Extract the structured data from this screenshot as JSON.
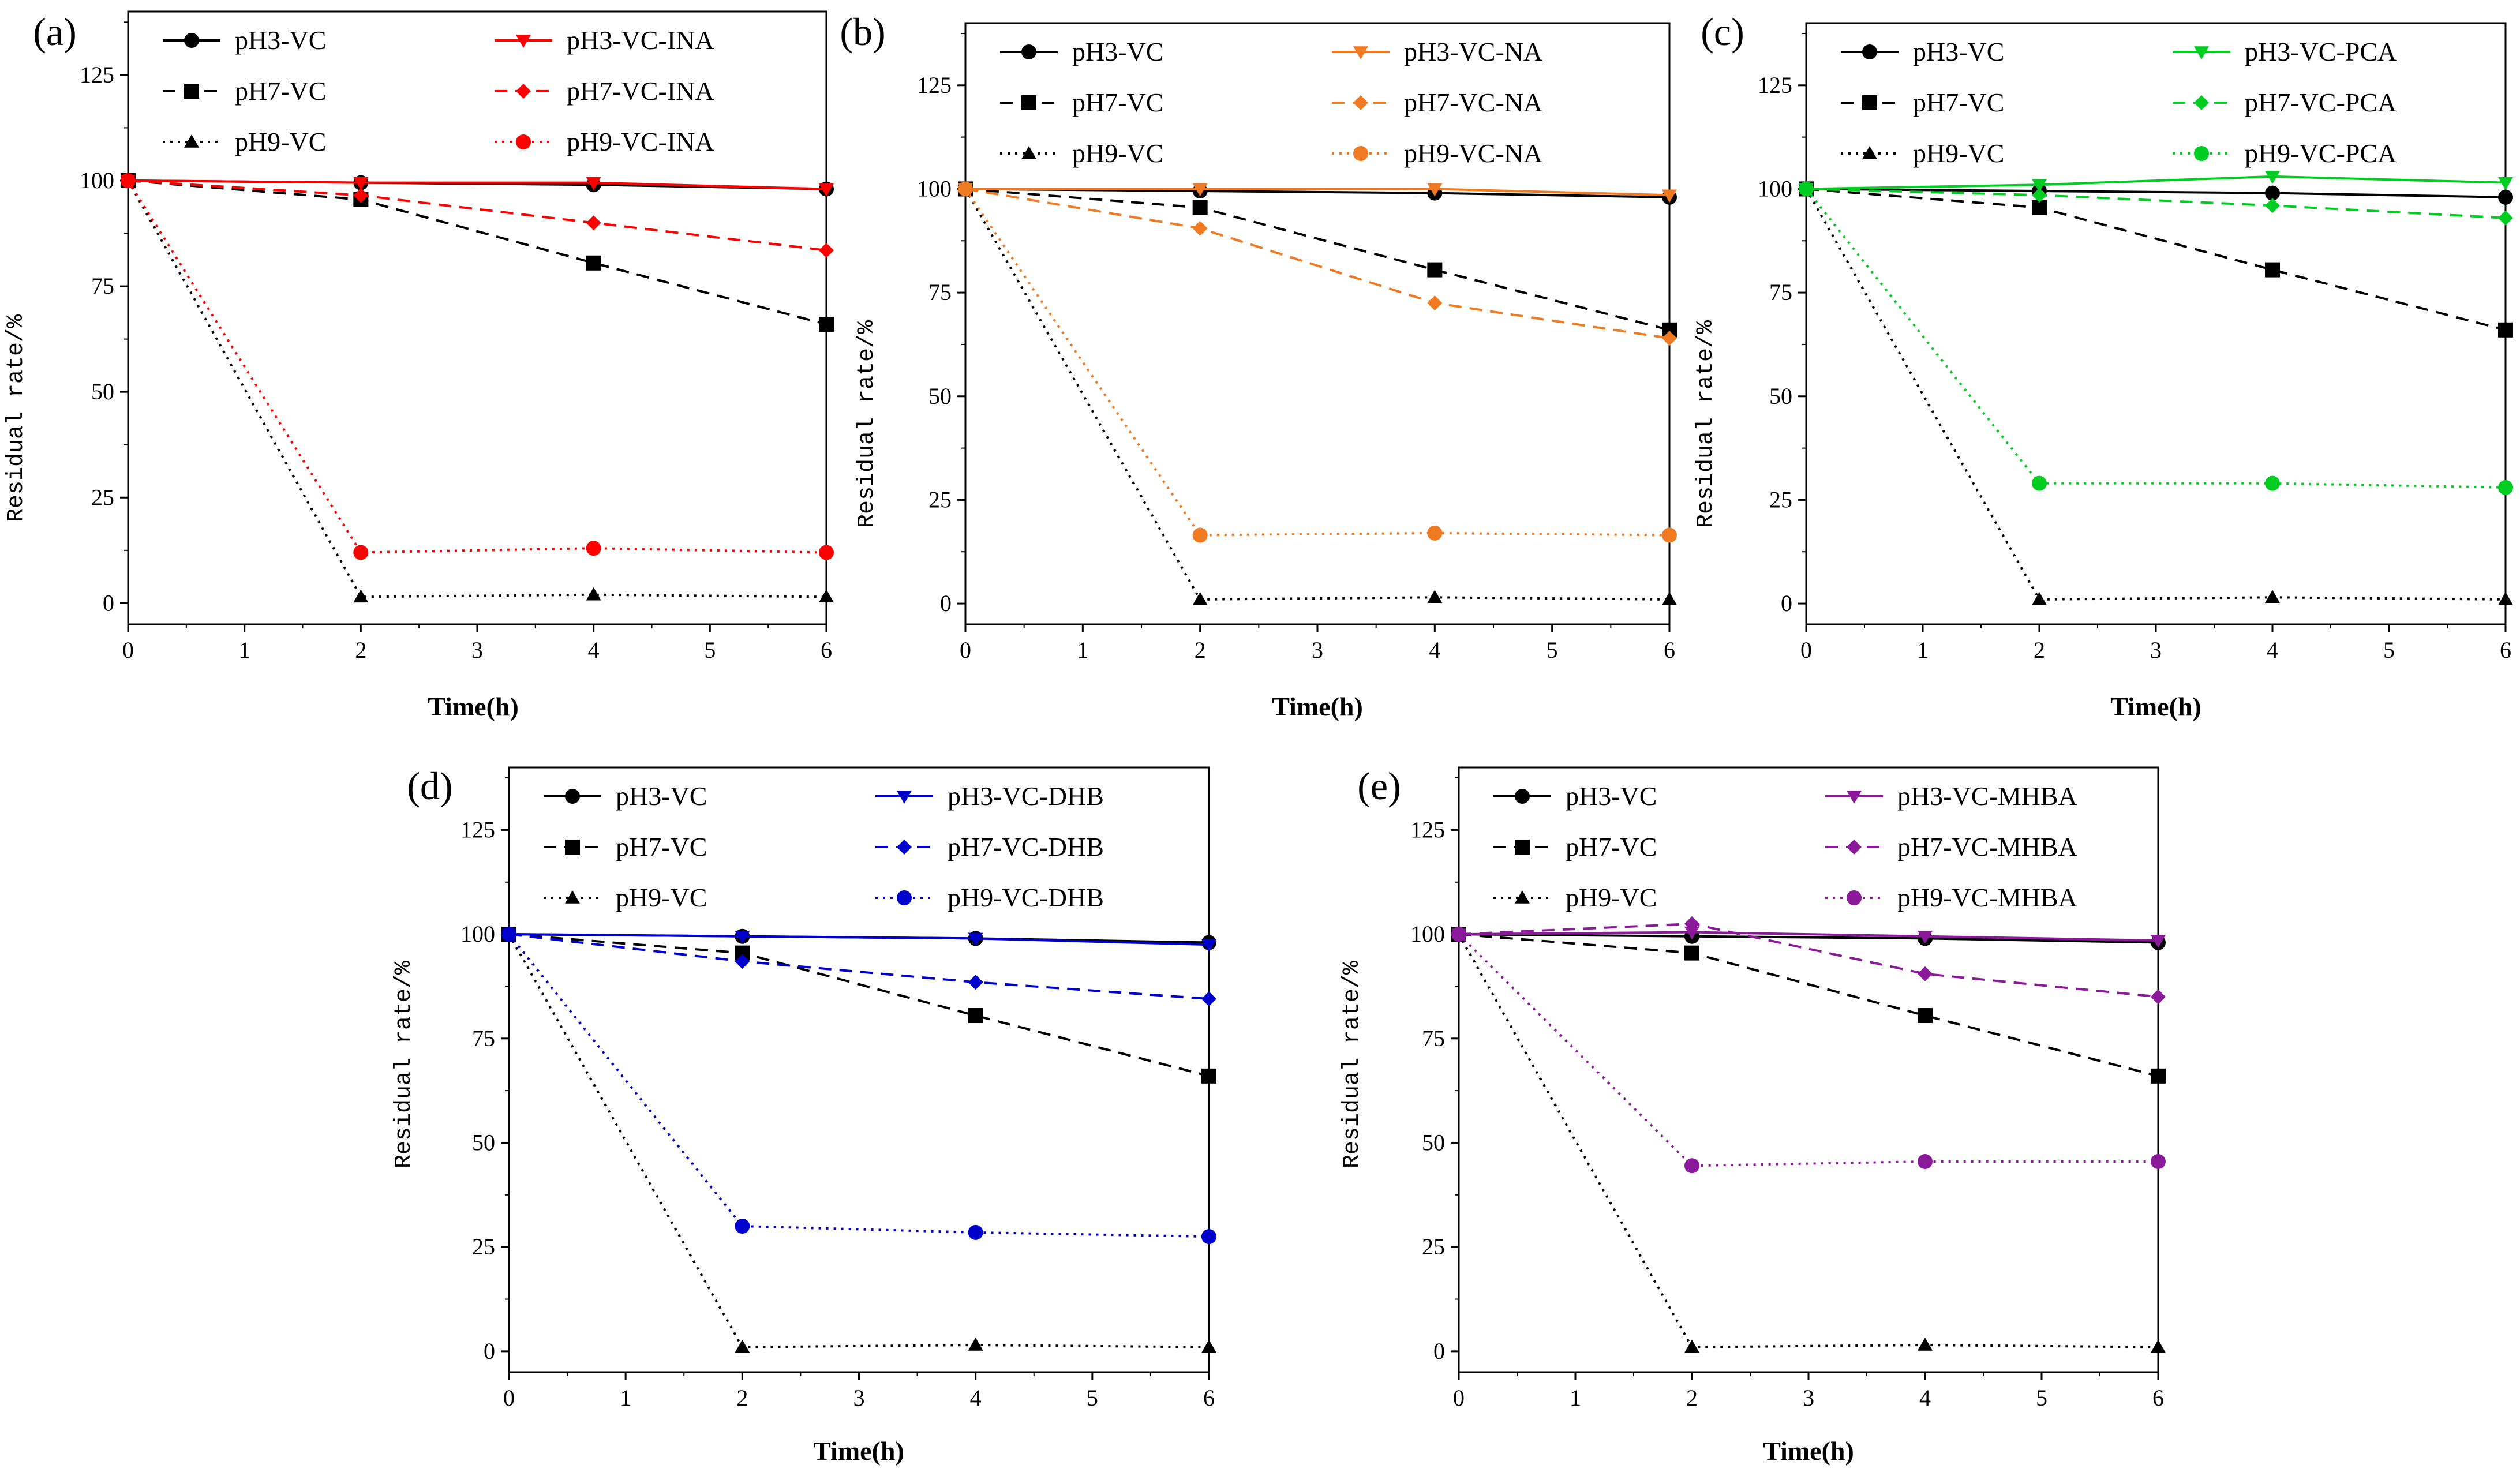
{
  "chart_data": [
    {
      "panel": "(a)",
      "type": "line",
      "xlabel": "Time(h)",
      "ylabel": "Residual rate/%",
      "xlim": [
        0,
        6
      ],
      "ylim": [
        -5,
        140
      ],
      "xticks": [
        "0",
        "1",
        "2",
        "3",
        "4",
        "5",
        "6"
      ],
      "yticks": [
        "0",
        "25",
        "50",
        "75",
        "100",
        "125"
      ],
      "x": [
        0,
        2,
        4,
        6
      ],
      "series": [
        {
          "name": "pH3-VC",
          "values": [
            100,
            99.5,
            99,
            98
          ],
          "color": "#000000",
          "dash": "solid",
          "marker": "circle"
        },
        {
          "name": "pH7-VC",
          "values": [
            100,
            95.5,
            80.5,
            66
          ],
          "color": "#000000",
          "dash": "dashed",
          "marker": "square"
        },
        {
          "name": "pH9-VC",
          "values": [
            100,
            1.5,
            2,
            1.5
          ],
          "color": "#000000",
          "dash": "dotted",
          "marker": "triangle"
        },
        {
          "name": "pH3-VC-INA",
          "values": [
            100,
            99.5,
            99.5,
            98
          ],
          "color": "#ff0000",
          "dash": "solid",
          "marker": "triangle-down"
        },
        {
          "name": "pH7-VC-INA",
          "values": [
            100,
            96.5,
            90,
            83.5
          ],
          "color": "#ff0000",
          "dash": "dashed",
          "marker": "diamond"
        },
        {
          "name": "pH9-VC-INA",
          "values": [
            100,
            12,
            13,
            12
          ],
          "color": "#ff0000",
          "dash": "dotted",
          "marker": "circle"
        }
      ]
    },
    {
      "panel": "(b)",
      "type": "line",
      "xlabel": "Time(h)",
      "ylabel": "Residual rate/%",
      "xlim": [
        0,
        6
      ],
      "ylim": [
        -5,
        140
      ],
      "xticks": [
        "0",
        "1",
        "2",
        "3",
        "4",
        "5",
        "6"
      ],
      "yticks": [
        "0",
        "25",
        "50",
        "75",
        "100",
        "125"
      ],
      "x": [
        0,
        2,
        4,
        6
      ],
      "series": [
        {
          "name": "pH3-VC",
          "values": [
            100,
            99.5,
            99,
            98
          ],
          "color": "#000000",
          "dash": "solid",
          "marker": "circle"
        },
        {
          "name": "pH7-VC",
          "values": [
            100,
            95.5,
            80.5,
            66
          ],
          "color": "#000000",
          "dash": "dashed",
          "marker": "square"
        },
        {
          "name": "pH9-VC",
          "values": [
            100,
            1,
            1.5,
            1
          ],
          "color": "#000000",
          "dash": "dotted",
          "marker": "triangle"
        },
        {
          "name": "pH3-VC-NA",
          "values": [
            100,
            100,
            100,
            98.5
          ],
          "color": "#f07a22",
          "dash": "solid",
          "marker": "triangle-down"
        },
        {
          "name": "pH7-VC-NA",
          "values": [
            100,
            90.5,
            72.5,
            64
          ],
          "color": "#f07a22",
          "dash": "dashed",
          "marker": "diamond"
        },
        {
          "name": "pH9-VC-NA",
          "values": [
            100,
            16.5,
            17,
            16.5
          ],
          "color": "#f07a22",
          "dash": "dotted",
          "marker": "circle"
        }
      ]
    },
    {
      "panel": "(c)",
      "type": "line",
      "xlabel": "Time(h)",
      "ylabel": "Residual rate/%",
      "xlim": [
        0,
        6
      ],
      "ylim": [
        -5,
        140
      ],
      "xticks": [
        "0",
        "1",
        "2",
        "3",
        "4",
        "5",
        "6"
      ],
      "yticks": [
        "0",
        "25",
        "50",
        "75",
        "100",
        "125"
      ],
      "x": [
        0,
        2,
        4,
        6
      ],
      "series": [
        {
          "name": "pH3-VC",
          "values": [
            100,
            99.5,
            99,
            98
          ],
          "color": "#000000",
          "dash": "solid",
          "marker": "circle"
        },
        {
          "name": "pH7-VC",
          "values": [
            100,
            95.5,
            80.5,
            66
          ],
          "color": "#000000",
          "dash": "dashed",
          "marker": "square"
        },
        {
          "name": "pH9-VC",
          "values": [
            100,
            1,
            1.5,
            1
          ],
          "color": "#000000",
          "dash": "dotted",
          "marker": "triangle"
        },
        {
          "name": "pH3-VC-PCA",
          "values": [
            100,
            101,
            103,
            101.5
          ],
          "color": "#00cc22",
          "dash": "solid",
          "marker": "triangle-down"
        },
        {
          "name": "pH7-VC-PCA",
          "values": [
            100,
            98.5,
            96,
            93
          ],
          "color": "#00cc22",
          "dash": "dashed",
          "marker": "diamond"
        },
        {
          "name": "pH9-VC-PCA",
          "values": [
            100,
            29,
            29,
            28
          ],
          "color": "#00cc22",
          "dash": "dotted",
          "marker": "circle"
        }
      ]
    },
    {
      "panel": "(d)",
      "type": "line",
      "xlabel": "Time(h)",
      "ylabel": "Residual rate/%",
      "xlim": [
        0,
        6
      ],
      "ylim": [
        -5,
        140
      ],
      "xticks": [
        "0",
        "1",
        "2",
        "3",
        "4",
        "5",
        "6"
      ],
      "yticks": [
        "0",
        "25",
        "50",
        "75",
        "100",
        "125"
      ],
      "x": [
        0,
        2,
        4,
        6
      ],
      "series": [
        {
          "name": "pH3-VC",
          "values": [
            100,
            99.5,
            99,
            98
          ],
          "color": "#000000",
          "dash": "solid",
          "marker": "circle"
        },
        {
          "name": "pH7-VC",
          "values": [
            100,
            95.5,
            80.5,
            66
          ],
          "color": "#000000",
          "dash": "dashed",
          "marker": "square"
        },
        {
          "name": "pH9-VC",
          "values": [
            100,
            1,
            1.5,
            1
          ],
          "color": "#000000",
          "dash": "dotted",
          "marker": "triangle"
        },
        {
          "name": "pH3-VC-DHB",
          "values": [
            100,
            99.5,
            99,
            97.5
          ],
          "color": "#0000cc",
          "dash": "solid",
          "marker": "triangle-down"
        },
        {
          "name": "pH7-VC-DHB",
          "values": [
            100,
            93.5,
            88.5,
            84.5
          ],
          "color": "#0000cc",
          "dash": "dashed",
          "marker": "diamond"
        },
        {
          "name": "pH9-VC-DHB",
          "values": [
            100,
            30,
            28.5,
            27.5
          ],
          "color": "#0000cc",
          "dash": "dotted",
          "marker": "circle"
        }
      ]
    },
    {
      "panel": "(e)",
      "type": "line",
      "xlabel": "Time(h)",
      "ylabel": "Residual rate/%",
      "xlim": [
        0,
        6
      ],
      "ylim": [
        -5,
        140
      ],
      "xticks": [
        "0",
        "1",
        "2",
        "3",
        "4",
        "5",
        "6"
      ],
      "yticks": [
        "0",
        "25",
        "50",
        "75",
        "100",
        "125"
      ],
      "x": [
        0,
        2,
        4,
        6
      ],
      "series": [
        {
          "name": "pH3-VC",
          "values": [
            100,
            99.5,
            99,
            98
          ],
          "color": "#000000",
          "dash": "solid",
          "marker": "circle"
        },
        {
          "name": "pH7-VC",
          "values": [
            100,
            95.5,
            80.5,
            66
          ],
          "color": "#000000",
          "dash": "dashed",
          "marker": "square"
        },
        {
          "name": "pH9-VC",
          "values": [
            100,
            1,
            1.5,
            1
          ],
          "color": "#000000",
          "dash": "dotted",
          "marker": "triangle"
        },
        {
          "name": "pH3-VC-MHBA",
          "values": [
            100,
            100.5,
            99.5,
            98.5
          ],
          "color": "#8b1a9b",
          "dash": "solid",
          "marker": "triangle-down"
        },
        {
          "name": "pH7-VC-MHBA",
          "values": [
            100,
            102.5,
            90.5,
            85
          ],
          "color": "#8b1a9b",
          "dash": "dashed",
          "marker": "diamond"
        },
        {
          "name": "pH9-VC-MHBA",
          "values": [
            100,
            44.5,
            45.5,
            45.5
          ],
          "color": "#8b1a9b",
          "dash": "dotted",
          "marker": "circle"
        }
      ]
    }
  ]
}
